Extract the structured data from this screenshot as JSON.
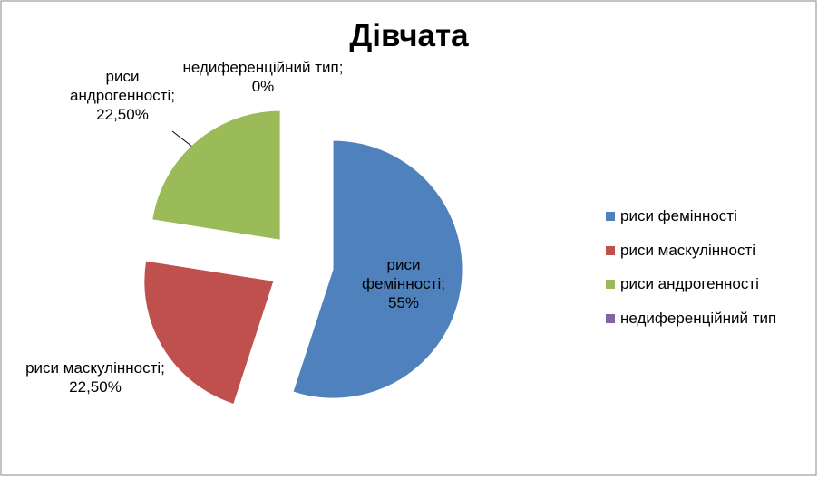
{
  "chart_data": {
    "type": "pie",
    "title": "Дівчата",
    "categories": [
      "риси фемінності",
      "риси маскулінності",
      "риси андрогенності",
      "недиференційний тип"
    ],
    "values": [
      55,
      22.5,
      22.5,
      0
    ],
    "value_labels": [
      "55%",
      "22,50%",
      "22,50%",
      "0%"
    ],
    "data_label_separator": ";",
    "colors": [
      "#4f81bd",
      "#c0504d",
      "#9bbb59",
      "#8064a2"
    ],
    "exploded": true,
    "legend": "right"
  }
}
